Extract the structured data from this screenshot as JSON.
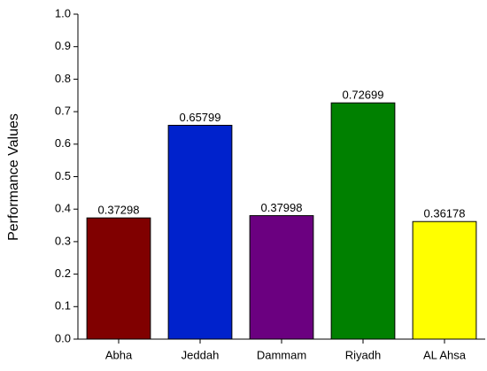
{
  "chart_data": {
    "type": "bar",
    "y_label": "Performance Values",
    "categories": [
      "Abha",
      "Jeddah",
      "Dammam",
      "Riyadh",
      "AL Ahsa"
    ],
    "values": [
      0.37298,
      0.65799,
      0.37998,
      0.72699,
      0.36178
    ],
    "colors": [
      "#800000",
      "#0022cc",
      "#6b0080",
      "#008000",
      "#ffff00"
    ],
    "ylim": [
      0,
      1
    ],
    "yticks": [
      {
        "value": 0,
        "label": "0.0"
      },
      0.1,
      0.2,
      0.3,
      0.4,
      0.5,
      0.6,
      0.7,
      0.8,
      0.9,
      {
        "value": 1,
        "label": "1.0"
      }
    ]
  }
}
